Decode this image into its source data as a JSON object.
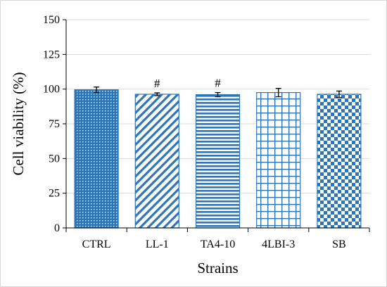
{
  "chart_data": {
    "type": "bar",
    "categories": [
      "CTRL",
      "LL-1",
      "TA4-10",
      "4LBI-3",
      "SB"
    ],
    "values": [
      99.5,
      96.3,
      96.0,
      97.5,
      96.3
    ],
    "errors": [
      2.0,
      1.0,
      1.5,
      3.0,
      2.3
    ],
    "annotations": [
      "",
      "#",
      "#",
      "",
      ""
    ],
    "patterns": [
      "dots",
      "diagonal",
      "horizontal",
      "grid",
      "checker"
    ],
    "xlabel": "Strains",
    "ylabel": "Cell viability (%)",
    "ylim": [
      0,
      150
    ],
    "yticks": [
      0,
      25,
      50,
      75,
      100,
      125,
      150
    ],
    "grid": true,
    "legend": "none",
    "colors": {
      "bar": "#2e75b6",
      "grid": "#d9d9d9",
      "axis": "#000000"
    }
  }
}
